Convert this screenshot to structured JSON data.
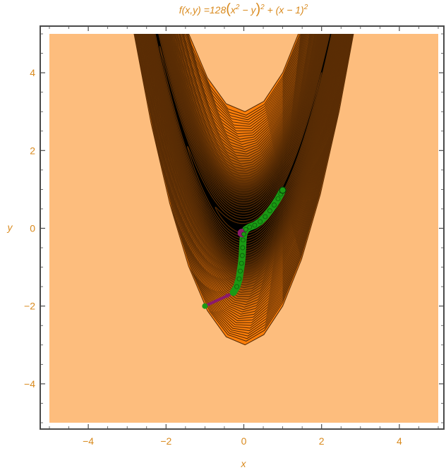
{
  "chart_data": {
    "type": "contour",
    "title": "f(x,y) =128(x² − y)² + (x − 1)²",
    "title_parts": {
      "lhs": "f(x,y) =128",
      "inner": "x",
      "inner_exp": "2",
      "inner_rest": " − y",
      "outer_exp": "2",
      "tail": " + (x − 1)",
      "tail_exp": "2"
    },
    "xlabel": "x",
    "ylabel": "y",
    "xlim": [
      -5,
      5
    ],
    "ylim": [
      -5,
      5
    ],
    "x_ticks": [
      -4,
      -2,
      0,
      2,
      4
    ],
    "y_ticks": [
      -4,
      -2,
      0,
      2,
      4
    ],
    "x_tick_labels": [
      "−4",
      "−2",
      "0",
      "2",
      "4"
    ],
    "y_tick_labels": [
      "−4",
      "−2",
      "0",
      "2",
      "4"
    ],
    "function": {
      "a": 128,
      "b": 1
    },
    "contour_levels": [
      1,
      3,
      6,
      10,
      15,
      21,
      28,
      36,
      45,
      55,
      66,
      78,
      91,
      105,
      120,
      136,
      153,
      171,
      190,
      210,
      231,
      253,
      276,
      300,
      325,
      351,
      378,
      406,
      435,
      465,
      496,
      528,
      561,
      595,
      630,
      666,
      703,
      741,
      780,
      820,
      861,
      903,
      946,
      990,
      1035,
      1081,
      1152
    ],
    "colors": {
      "background_fill": "#fdbd7d",
      "band_fill": "#fe7f0a",
      "valley_fill": "#000000",
      "contour_line": "#5a2d05",
      "path_color": "#1a9a14",
      "start_arrow_color": "#8b1a6b",
      "label_color": "#d98a1e",
      "frame_color": "#4a4a4a"
    },
    "path": [
      [
        -1.0,
        -2.0
      ],
      [
        -0.27,
        -1.65
      ],
      [
        -0.18,
        -1.5
      ],
      [
        -0.12,
        -1.3
      ],
      [
        -0.09,
        -1.1
      ],
      [
        -0.06,
        -0.9
      ],
      [
        -0.04,
        -0.7
      ],
      [
        -0.03,
        -0.5
      ],
      [
        -0.02,
        -0.3
      ],
      [
        0.0,
        -0.15
      ],
      [
        0.05,
        -0.03
      ],
      [
        0.15,
        0.03
      ],
      [
        0.28,
        0.08
      ],
      [
        0.42,
        0.17
      ],
      [
        0.55,
        0.3
      ],
      [
        0.67,
        0.45
      ],
      [
        0.78,
        0.6
      ],
      [
        0.88,
        0.76
      ],
      [
        0.95,
        0.88
      ],
      [
        1.0,
        0.98
      ]
    ],
    "start_point": [
      -1.0,
      -2.0
    ],
    "first_step_point": [
      -0.27,
      -1.65
    ],
    "end_point": [
      1.0,
      0.98
    ],
    "purple_marker": [
      -0.05,
      -0.12
    ]
  }
}
